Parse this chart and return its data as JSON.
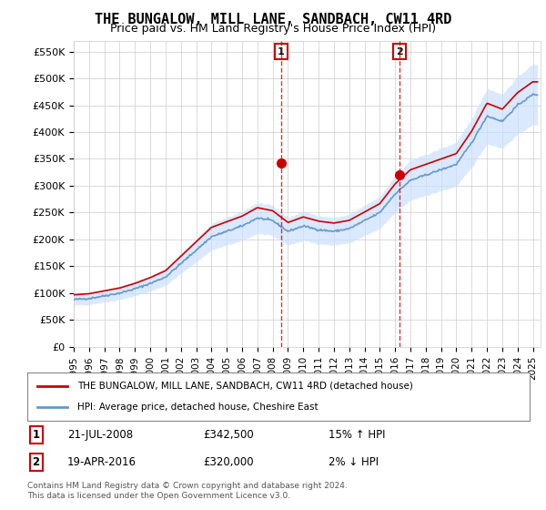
{
  "title": "THE BUNGALOW, MILL LANE, SANDBACH, CW11 4RD",
  "subtitle": "Price paid vs. HM Land Registry's House Price Index (HPI)",
  "ylabel_ticks": [
    "£0",
    "£50K",
    "£100K",
    "£150K",
    "£200K",
    "£250K",
    "£300K",
    "£350K",
    "£400K",
    "£450K",
    "£500K",
    "£550K"
  ],
  "ytick_values": [
    0,
    50000,
    100000,
    150000,
    200000,
    250000,
    300000,
    350000,
    400000,
    450000,
    500000,
    550000
  ],
  "ylim": [
    0,
    570000
  ],
  "xlim_start": 1995.0,
  "xlim_end": 2025.5,
  "red_line_color": "#cc0000",
  "blue_line_color": "#6699cc",
  "blue_fill_color": "#cce0ff",
  "vline_color": "#cc0000",
  "marker1_date": 2008.55,
  "marker2_date": 2016.3,
  "marker1_price": 342500,
  "marker2_price": 320000,
  "legend_label1": "THE BUNGALOW, MILL LANE, SANDBACH, CW11 4RD (detached house)",
  "legend_label2": "HPI: Average price, detached house, Cheshire East",
  "table_row1": [
    "1",
    "21-JUL-2008",
    "£342,500",
    "15% ↑ HPI"
  ],
  "table_row2": [
    "2",
    "19-APR-2016",
    "£320,000",
    "2% ↓ HPI"
  ],
  "footer": "Contains HM Land Registry data © Crown copyright and database right 2024.\nThis data is licensed under the Open Government Licence v3.0.",
  "background_color": "#ffffff",
  "plot_bg_color": "#ffffff",
  "grid_color": "#cccccc"
}
